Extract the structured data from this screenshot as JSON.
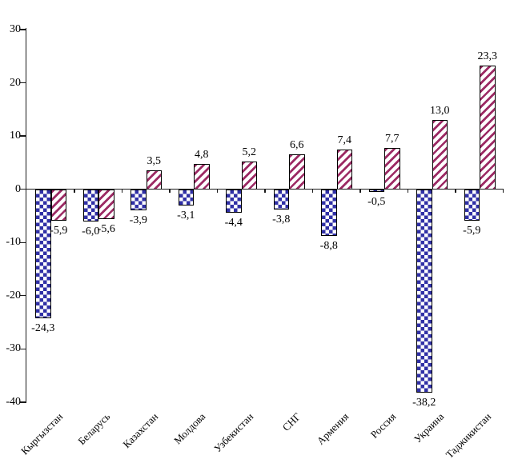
{
  "chart_data": {
    "type": "bar",
    "title": "",
    "legend": "none",
    "grid": "off",
    "categories": [
      "Кыргызстан",
      "Беларусь",
      "Казахстан",
      "Молдова",
      "Узбекистан",
      "СНГ",
      "Армения",
      "Россия",
      "Украина",
      "Таджикистан"
    ],
    "series": [
      {
        "name": "blue-checkerboard-series",
        "pattern": "blue-checkerboard",
        "values": [
          -24.3,
          -6.0,
          -3.9,
          -3.1,
          -4.4,
          -3.8,
          -8.8,
          -0.5,
          -38.2,
          -5.9
        ],
        "labels": [
          "-24,3",
          "-6,0",
          "-3,9",
          "-3,1",
          "-4,4",
          "-3,8",
          "-8,8",
          "-0,5",
          "-38,2",
          "-5,9"
        ]
      },
      {
        "name": "crimson-diagonal-stripe-series",
        "pattern": "crimson-diagonal-stripes",
        "values": [
          -5.9,
          -5.6,
          3.5,
          4.8,
          5.2,
          6.6,
          7.4,
          7.7,
          13.0,
          23.3
        ],
        "labels": [
          "-5,9",
          "-5,6",
          "3,5",
          "4,8",
          "5,2",
          "6,6",
          "7,4",
          "7,7",
          "13,0",
          "23,3"
        ]
      }
    ],
    "y_axis": {
      "min": -40,
      "max": 30,
      "tick_step": 10,
      "tick_labels": [
        "30",
        "20",
        "10",
        "0",
        "-10",
        "-20",
        "-30",
        "-40"
      ]
    },
    "colors": {
      "series1_blue": "#3030a6",
      "series2_crimson": "#9c2a64",
      "axis": "#1a1a1a",
      "background": "#ffffff"
    }
  }
}
